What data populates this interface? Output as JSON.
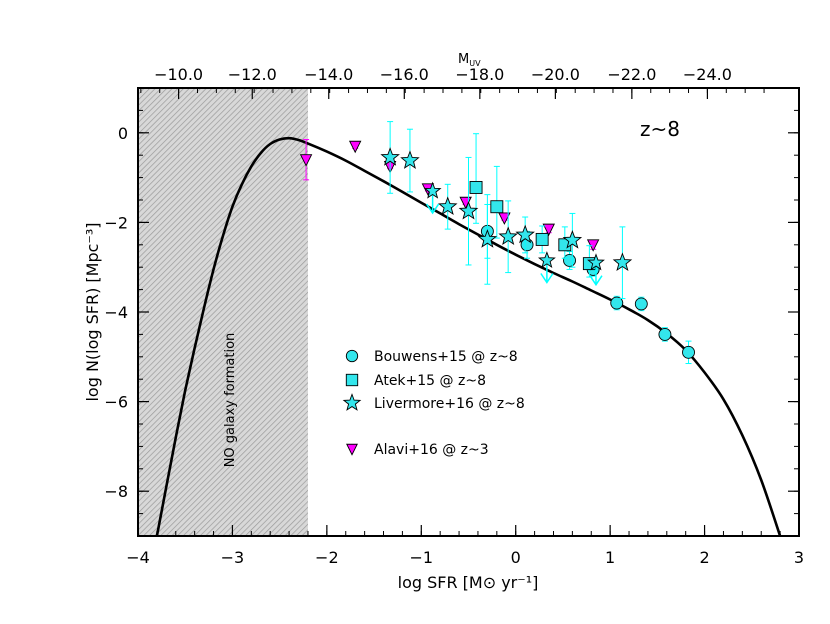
{
  "chart_data": {
    "type": "scatter",
    "xlabel": "log SFR [M⊙ yr⁻¹]",
    "ylabel": "log N(log SFR) [Mpc⁻³]",
    "top_xlabel": "M",
    "top_xlabel_sub": "UV",
    "xlim": [
      -4,
      3
    ],
    "ylim": [
      -9,
      1
    ],
    "xticks": [
      -4,
      -3,
      -2,
      -1,
      0,
      1,
      2,
      3
    ],
    "xtick_labels": [
      "−4",
      "−3",
      "−2",
      "−1",
      "0",
      "1",
      "2",
      "3"
    ],
    "yticks": [
      -8,
      -6,
      -4,
      -2,
      0
    ],
    "ytick_labels": [
      "−8",
      "−6",
      "−4",
      "−2",
      "0"
    ],
    "top_ticks": [
      {
        "label": "−10.0",
        "x": -3.57
      },
      {
        "label": "−12.0",
        "x": -2.79
      },
      {
        "label": "−14.0",
        "x": -1.98
      },
      {
        "label": "−16.0",
        "x": -1.18
      },
      {
        "label": "−18.0",
        "x": -0.38
      },
      {
        "label": "−20.0",
        "x": 0.42
      },
      {
        "label": "−22.0",
        "x": 1.23
      },
      {
        "label": "−24.0",
        "x": 2.03
      }
    ],
    "annotation": "z~8",
    "shaded_region": {
      "x": [
        -4,
        -2.2
      ],
      "label": "NO galaxy formation"
    },
    "legend": [
      {
        "label": "Bouwens+15 @ z~8",
        "marker": "circle"
      },
      {
        "label": "Atek+15 @ z~8",
        "marker": "square"
      },
      {
        "label": "Livermore+16 @ z~8",
        "marker": "star"
      },
      {
        "label": "Alavi+16 @ z~3",
        "marker": "triangle"
      }
    ],
    "colors": {
      "cyan": "#00ffff",
      "cyan_marker": "#33e6ec",
      "magenta": "#ff00ff",
      "hatch": "#9a9a9a",
      "curve": "#000000"
    },
    "curve": {
      "x": [
        -3.8,
        -3.7,
        -3.6,
        -3.5,
        -3.4,
        -3.3,
        -3.2,
        -3.1,
        -3.0,
        -2.9,
        -2.8,
        -2.7,
        -2.6,
        -2.5,
        -2.4,
        -2.3,
        -2.2,
        -2.0,
        -1.8,
        -1.6,
        -1.4,
        -1.2,
        -1.0,
        -0.8,
        -0.6,
        -0.4,
        -0.2,
        0.0,
        0.2,
        0.4,
        0.6,
        0.8,
        1.0,
        1.2,
        1.4,
        1.6,
        1.8,
        2.0,
        2.2,
        2.4,
        2.6,
        2.8
      ],
      "y": [
        -9.0,
        -7.9,
        -6.8,
        -5.75,
        -4.8,
        -3.9,
        -3.05,
        -2.3,
        -1.65,
        -1.15,
        -0.75,
        -0.45,
        -0.25,
        -0.15,
        -0.12,
        -0.16,
        -0.24,
        -0.42,
        -0.62,
        -0.85,
        -1.08,
        -1.32,
        -1.56,
        -1.8,
        -2.04,
        -2.27,
        -2.5,
        -2.72,
        -2.93,
        -3.13,
        -3.32,
        -3.52,
        -3.72,
        -3.94,
        -4.18,
        -4.48,
        -4.85,
        -5.35,
        -5.95,
        -6.75,
        -7.75,
        -9.0
      ]
    },
    "series": [
      {
        "name": "Bouwens+15 @ z~8",
        "marker": "circle",
        "points": [
          {
            "x": -0.3,
            "y": -2.2,
            "yerr": [
              0.6,
              0.6
            ]
          },
          {
            "x": 0.12,
            "y": -2.5,
            "yerr": [
              0.3,
              0.3
            ]
          },
          {
            "x": 0.57,
            "y": -2.85,
            "yerr": [
              0.2,
              0.2
            ]
          },
          {
            "x": 0.82,
            "y": -3.05,
            "yerr": [
              0.15,
              0.15
            ]
          },
          {
            "x": 1.07,
            "y": -3.8,
            "yerr": [
              0.15,
              0.15
            ]
          },
          {
            "x": 1.33,
            "y": -3.82,
            "yerr": [
              0.15,
              0.15
            ]
          },
          {
            "x": 1.58,
            "y": -4.5,
            "yerr": [
              0.15,
              0.15
            ]
          },
          {
            "x": 1.83,
            "y": -4.9,
            "yerr": [
              0.25,
              0.25
            ]
          }
        ]
      },
      {
        "name": "Atek+15 @ z~8",
        "marker": "square",
        "points": [
          {
            "x": -0.42,
            "y": -1.22,
            "yerr": [
              0.8,
              1.2
            ]
          },
          {
            "x": -0.2,
            "y": -1.65,
            "yerr": [
              0.7,
              0.9
            ]
          },
          {
            "x": 0.28,
            "y": -2.38,
            "yerr": [
              0.3,
              0.3
            ]
          },
          {
            "x": 0.52,
            "y": -2.5,
            "yerr": [
              0.3,
              0.4
            ]
          },
          {
            "x": 0.78,
            "y": -2.92,
            "yerr": [
              0.3,
              0.4
            ]
          }
        ]
      },
      {
        "name": "Livermore+16 @ z~8",
        "marker": "star",
        "points": [
          {
            "x": -1.33,
            "y": -0.55,
            "yerr": [
              0.8,
              0.8
            ]
          },
          {
            "x": -1.12,
            "y": -0.62,
            "yerr": [
              0.7,
              0.7
            ]
          },
          {
            "x": -0.72,
            "y": -1.65,
            "yerr": [
              0.5,
              0.5
            ]
          },
          {
            "x": -0.5,
            "y": -1.75,
            "yerr": [
              1.2,
              1.2
            ]
          },
          {
            "x": -0.3,
            "y": -2.38,
            "yerr": [
              1.0,
              1.0
            ]
          },
          {
            "x": -0.08,
            "y": -2.32,
            "yerr": [
              0.8,
              0.8
            ]
          },
          {
            "x": 0.1,
            "y": -2.28,
            "yerr": [
              0.4,
              0.4
            ]
          },
          {
            "x": 0.6,
            "y": -2.4,
            "yerr": [
              0.6,
              0.6
            ]
          },
          {
            "x": 1.13,
            "y": -2.9,
            "yerr": [
              0.8,
              0.8
            ]
          }
        ],
        "upper_limits": [
          {
            "x": -0.88,
            "y": -1.3
          },
          {
            "x": 0.33,
            "y": -2.85
          },
          {
            "x": 0.85,
            "y": -2.9
          }
        ]
      },
      {
        "name": "Alavi+16 @ z~3",
        "marker": "triangle",
        "points": [
          {
            "x": -2.22,
            "y": -0.6,
            "yerr": [
              0.45,
              0.45
            ]
          },
          {
            "x": -1.7,
            "y": -0.3,
            "yerr": [
              0.05,
              0.05
            ]
          },
          {
            "x": -1.33,
            "y": -0.75,
            "yerr": [
              0.05,
              0.05
            ]
          },
          {
            "x": -0.93,
            "y": -1.25,
            "yerr": [
              0.05,
              0.05
            ]
          },
          {
            "x": -0.53,
            "y": -1.55,
            "yerr": [
              0.05,
              0.05
            ]
          },
          {
            "x": -0.12,
            "y": -1.9,
            "yerr": [
              0.05,
              0.05
            ]
          },
          {
            "x": 0.35,
            "y": -2.15,
            "yerr": [
              0.08,
              0.08
            ]
          },
          {
            "x": 0.82,
            "y": -2.5,
            "yerr": [
              0.1,
              0.1
            ]
          }
        ]
      }
    ]
  }
}
